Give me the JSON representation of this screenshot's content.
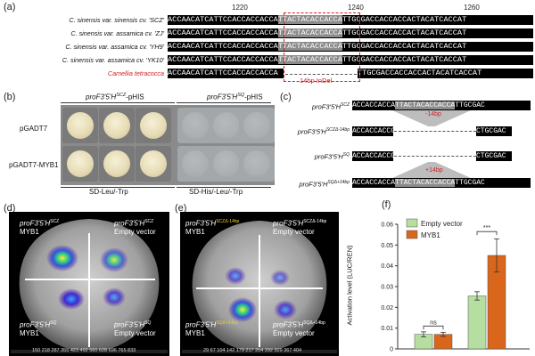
{
  "panel_labels": {
    "a": "(a)",
    "b": "(b)",
    "c": "(c)",
    "d": "(d)",
    "e": "(e)",
    "f": "(f)"
  },
  "panel_a": {
    "positions": [
      "1220",
      "1240",
      "1260"
    ],
    "rows": [
      {
        "label": "C. sinensis var. sinensis cv. 'SCZ'",
        "pre": "ACCAACATCATTCCACCACCACCA",
        "hl": "TTACTACACCACCA",
        "post": "TTGCGACCACCACCACTACATCACCAT"
      },
      {
        "label": "C. sinensis var. assamica cv. 'ZJ'",
        "pre": "ACCAACATCATTCCACCACCACCA",
        "hl": "TTACTACACCACCA",
        "post": "TTGCGACCACCACCACTACATCACCAT"
      },
      {
        "label": "C. sinensis var. assamica cv. 'YH9'",
        "pre": "ACCAACATCATTCCACCACCACCA",
        "hl": "TTACTACACCACCA",
        "post": "TTGCGACCACCACCACTACATCACCAT"
      },
      {
        "label": "C. sinensis var. assamica cv. 'YK10'",
        "pre": "ACCAACATCATTCCACCACCACCA",
        "hl": "TTACTACACCACCA",
        "post": "TTGCGACCACCACCACTACATCACCAT"
      },
      {
        "label": "Camellia tetracocca",
        "pre": "ACCAACATCATTCCACCACCACCA",
        "hl": "",
        "post": "TTGCGACCACCACCACTACATCACCAT"
      }
    ],
    "indel_label": "14bp InDel"
  },
  "panel_b": {
    "col_headers": [
      "proF3'5'H",
      "proF3'5'H"
    ],
    "col_header_sups": [
      "SCZ",
      "SQ"
    ],
    "col_header_suffix": "-pHIS",
    "row_labels": [
      "pGADT7",
      "pGADT7-MYB1"
    ],
    "media": [
      "SD-Leu/-Trp",
      "SD-His/-Leu/-Trp"
    ]
  },
  "panel_c": {
    "rows": [
      {
        "label": "proF3'5'H",
        "sup": "SCZ",
        "pre": "ACCACCACCA",
        "mid": "TTACTACACCACCA",
        "post": "TTGCGAC"
      },
      {
        "label": "proF3'5'H",
        "sup": "SCZΔ-14bp",
        "pre": "ACCACCACCG",
        "mid": "",
        "post": "CTGCGAC"
      },
      {
        "label": "proF3'5'H",
        "sup": "SQ",
        "pre": "ACCACCACCG",
        "mid": "",
        "post": "CTGCGAC"
      },
      {
        "label": "proF3'5'H",
        "sup": "SQΔ+14bp",
        "pre": "ACCACCACCA",
        "mid": "TTACTACACCACCA",
        "post": "TTGCGAC"
      }
    ],
    "minus_label": "-14bp",
    "plus_label": "+14bp"
  },
  "panel_d": {
    "tl": {
      "name": "proF3'5'H",
      "sup": "SCZ",
      "sub": "MYB1"
    },
    "tr": {
      "name": "proF3'5'H",
      "sup": "SCZ",
      "sub": "Empty vector"
    },
    "bl": {
      "name": "proF3'5'H",
      "sup": "SQ",
      "sub": "MYB1"
    },
    "br": {
      "name": "proF3'5'H",
      "sup": "SQ",
      "sub": "Empty vector"
    },
    "scale": "150 218 287 355 423 492 560 628 696 765 833"
  },
  "panel_e": {
    "tl": {
      "name": "proF3'5'H",
      "sup": "SCZΔ-14bp",
      "sub": "MYB1"
    },
    "tr": {
      "name": "proF3'5'H",
      "sup": "SCZΔ-14bp",
      "sub": "Empty vector"
    },
    "bl": {
      "name": "proF3'5'H",
      "sup": "SQΔ+14bp",
      "sub": "MYB1"
    },
    "br": {
      "name": "proF3'5'H",
      "sup": "SQΔ+14bp",
      "sub": "Empty vector"
    },
    "scale": "29 67 104 142 179 217 254 292 329 367 404"
  },
  "chart_data": {
    "type": "bar",
    "ylabel": "Activation level (LUC/REN)",
    "ylim": [
      0,
      0.06
    ],
    "yticks": [
      "0",
      "0.01",
      "0.02",
      "0.03",
      "0.04",
      "0.05",
      "0.06"
    ],
    "series": [
      {
        "name": "Empty vector",
        "color": "#b5dea0",
        "values": [
          0.007,
          0.0255
        ],
        "errors": [
          0.0012,
          0.002
        ]
      },
      {
        "name": "MYB1",
        "color": "#d9661a",
        "values": [
          0.007,
          0.045
        ],
        "errors": [
          0.001,
          0.008
        ]
      }
    ],
    "groups": 2,
    "annotations": [
      "ns",
      "***"
    ]
  }
}
